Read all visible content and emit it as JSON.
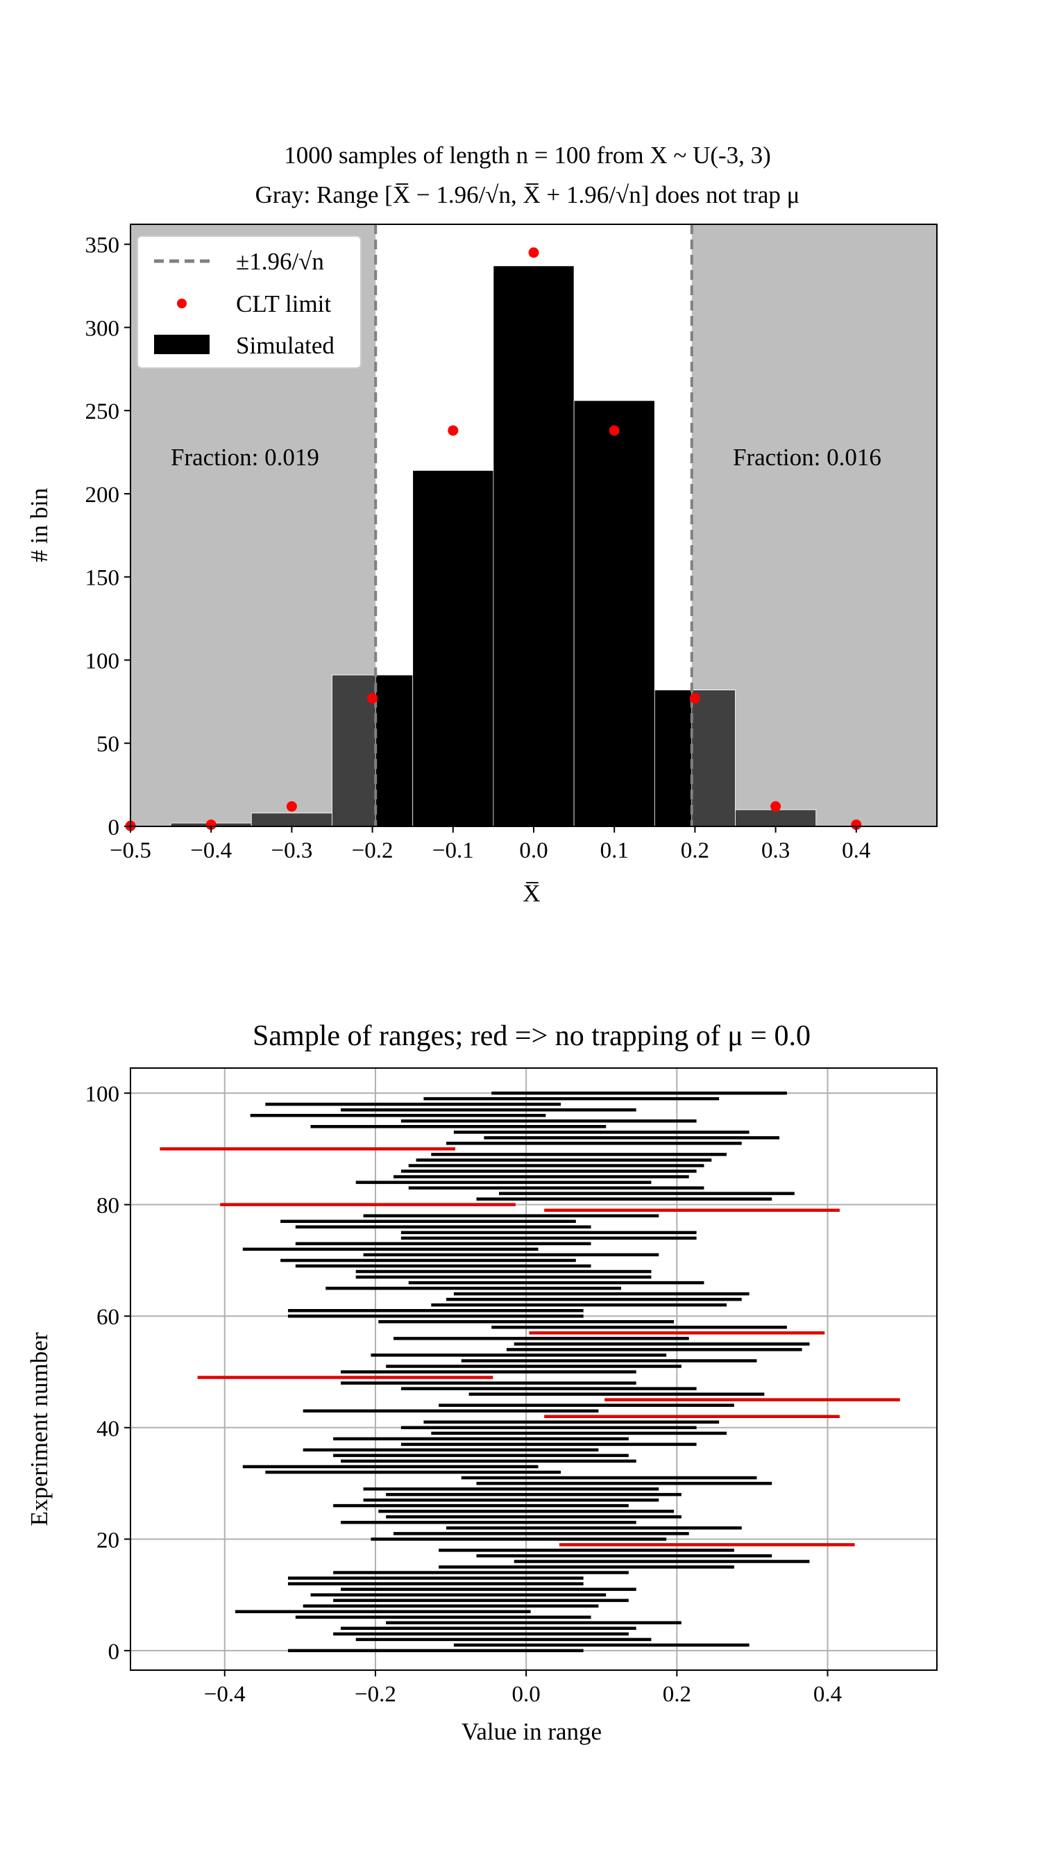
{
  "chart_data": [
    {
      "type": "bar",
      "title": "1000 samples of length n = 100 from X ~ U(-3, 3)",
      "subtitle": "Gray: Range [X̅ − 1.96/√n, X̅ + 1.96/√n] does not trap μ",
      "xlabel": "X̅",
      "ylabel": "# in bin",
      "xlim": [
        -0.5,
        0.5
      ],
      "ylim": [
        0,
        362
      ],
      "xticks": [
        "−0.5",
        "−0.4",
        "−0.3",
        "−0.2",
        "−0.1",
        "0.0",
        "0.1",
        "0.2",
        "0.3",
        "0.4"
      ],
      "xtick_values": [
        -0.5,
        -0.4,
        -0.3,
        -0.2,
        -0.1,
        0.0,
        0.1,
        0.2,
        0.3,
        0.4
      ],
      "yticks": [
        "0",
        "50",
        "100",
        "150",
        "200",
        "250",
        "300",
        "350"
      ],
      "ytick_values": [
        0,
        50,
        100,
        150,
        200,
        250,
        300,
        350
      ],
      "grid": false,
      "legend_position": "top-left",
      "legend": [
        "±1.96/√n",
        "CLT limit",
        "Simulated"
      ],
      "threshold": 0.196,
      "gray_color": "#bebebe",
      "colors": {
        "bar": "#000000",
        "bar_in_gray": "#404040",
        "clt": "#ff0000",
        "vline": "#808080"
      },
      "annotations": [
        "Fraction: 0.019",
        "Fraction: 0.016"
      ],
      "bins": [
        {
          "x": -0.4,
          "count": 2
        },
        {
          "x": -0.3,
          "count": 8
        },
        {
          "x": -0.2,
          "count": 91
        },
        {
          "x": -0.1,
          "count": 214
        },
        {
          "x": 0.0,
          "count": 337
        },
        {
          "x": 0.1,
          "count": 256
        },
        {
          "x": 0.2,
          "count": 82
        },
        {
          "x": 0.3,
          "count": 10
        }
      ],
      "bin_width": 0.1,
      "clt_limit": [
        {
          "x": -0.5,
          "y": 0.3
        },
        {
          "x": -0.4,
          "y": 1
        },
        {
          "x": -0.3,
          "y": 12
        },
        {
          "x": -0.2,
          "y": 77
        },
        {
          "x": -0.1,
          "y": 238
        },
        {
          "x": 0.0,
          "y": 345
        },
        {
          "x": 0.1,
          "y": 238
        },
        {
          "x": 0.2,
          "y": 77
        },
        {
          "x": 0.3,
          "y": 12
        },
        {
          "x": 0.4,
          "y": 1
        }
      ]
    },
    {
      "type": "range",
      "title": "Sample of ranges; red => no trapping of μ = 0.0",
      "xlabel": "Value in range",
      "ylabel": "Experiment number",
      "xlim": [
        -0.525,
        0.545
      ],
      "ylim": [
        -3.5,
        104.5
      ],
      "xticks": [
        "−0.4",
        "−0.2",
        "0.0",
        "0.2",
        "0.4"
      ],
      "xtick_values": [
        -0.4,
        -0.2,
        0.0,
        0.2,
        0.4
      ],
      "yticks": [
        "0",
        "20",
        "40",
        "60",
        "80",
        "100"
      ],
      "ytick_values": [
        0,
        20,
        40,
        60,
        80,
        100
      ],
      "grid": true,
      "mu": 0.0,
      "half_width": 0.196,
      "colors": {
        "trap": "#000000",
        "miss": "#e00000",
        "grid": "#b0b0b0"
      },
      "ranges": [
        {
          "n": 0,
          "center": -0.12
        },
        {
          "n": 1,
          "center": 0.1
        },
        {
          "n": 2,
          "center": -0.03
        },
        {
          "n": 3,
          "center": -0.06
        },
        {
          "n": 4,
          "center": -0.05
        },
        {
          "n": 5,
          "center": 0.01
        },
        {
          "n": 6,
          "center": -0.11
        },
        {
          "n": 7,
          "center": -0.19
        },
        {
          "n": 8,
          "center": -0.1
        },
        {
          "n": 9,
          "center": -0.06
        },
        {
          "n": 10,
          "center": -0.09
        },
        {
          "n": 11,
          "center": -0.05
        },
        {
          "n": 12,
          "center": -0.12
        },
        {
          "n": 13,
          "center": -0.12
        },
        {
          "n": 14,
          "center": -0.06
        },
        {
          "n": 15,
          "center": 0.08
        },
        {
          "n": 16,
          "center": 0.18
        },
        {
          "n": 17,
          "center": 0.13
        },
        {
          "n": 18,
          "center": 0.08
        },
        {
          "n": 19,
          "center": 0.24
        },
        {
          "n": 20,
          "center": -0.01
        },
        {
          "n": 21,
          "center": 0.02
        },
        {
          "n": 22,
          "center": 0.09
        },
        {
          "n": 23,
          "center": -0.05
        },
        {
          "n": 24,
          "center": 0.01
        },
        {
          "n": 25,
          "center": 0.0
        },
        {
          "n": 26,
          "center": -0.06
        },
        {
          "n": 27,
          "center": -0.02
        },
        {
          "n": 28,
          "center": 0.01
        },
        {
          "n": 29,
          "center": -0.02
        },
        {
          "n": 30,
          "center": 0.13
        },
        {
          "n": 31,
          "center": 0.11
        },
        {
          "n": 32,
          "center": -0.15
        },
        {
          "n": 33,
          "center": -0.18
        },
        {
          "n": 34,
          "center": -0.05
        },
        {
          "n": 35,
          "center": -0.06
        },
        {
          "n": 36,
          "center": -0.1
        },
        {
          "n": 37,
          "center": 0.03
        },
        {
          "n": 38,
          "center": -0.06
        },
        {
          "n": 39,
          "center": 0.07
        },
        {
          "n": 40,
          "center": 0.03
        },
        {
          "n": 41,
          "center": 0.06
        },
        {
          "n": 42,
          "center": 0.22
        },
        {
          "n": 43,
          "center": -0.1
        },
        {
          "n": 44,
          "center": 0.08
        },
        {
          "n": 45,
          "center": 0.3
        },
        {
          "n": 46,
          "center": 0.12
        },
        {
          "n": 47,
          "center": 0.03
        },
        {
          "n": 48,
          "center": -0.05
        },
        {
          "n": 49,
          "center": -0.24
        },
        {
          "n": 50,
          "center": -0.05
        },
        {
          "n": 51,
          "center": 0.01
        },
        {
          "n": 52,
          "center": 0.11
        },
        {
          "n": 53,
          "center": -0.01
        },
        {
          "n": 54,
          "center": 0.17
        },
        {
          "n": 55,
          "center": 0.18
        },
        {
          "n": 56,
          "center": 0.02
        },
        {
          "n": 57,
          "center": 0.2
        },
        {
          "n": 58,
          "center": 0.15
        },
        {
          "n": 59,
          "center": 0.0
        },
        {
          "n": 60,
          "center": -0.12
        },
        {
          "n": 61,
          "center": -0.12
        },
        {
          "n": 62,
          "center": 0.07
        },
        {
          "n": 63,
          "center": 0.09
        },
        {
          "n": 64,
          "center": 0.1
        },
        {
          "n": 65,
          "center": -0.07
        },
        {
          "n": 66,
          "center": 0.04
        },
        {
          "n": 67,
          "center": -0.03
        },
        {
          "n": 68,
          "center": -0.03
        },
        {
          "n": 69,
          "center": -0.11
        },
        {
          "n": 70,
          "center": -0.13
        },
        {
          "n": 71,
          "center": -0.02
        },
        {
          "n": 72,
          "center": -0.18
        },
        {
          "n": 73,
          "center": -0.11
        },
        {
          "n": 74,
          "center": 0.03
        },
        {
          "n": 75,
          "center": 0.03
        },
        {
          "n": 76,
          "center": -0.11
        },
        {
          "n": 77,
          "center": -0.13
        },
        {
          "n": 78,
          "center": -0.02
        },
        {
          "n": 79,
          "center": 0.22
        },
        {
          "n": 80,
          "center": -0.21
        },
        {
          "n": 81,
          "center": 0.13
        },
        {
          "n": 82,
          "center": 0.16
        },
        {
          "n": 83,
          "center": 0.04
        },
        {
          "n": 84,
          "center": -0.03
        },
        {
          "n": 85,
          "center": 0.02
        },
        {
          "n": 86,
          "center": 0.03
        },
        {
          "n": 87,
          "center": 0.04
        },
        {
          "n": 88,
          "center": 0.05
        },
        {
          "n": 89,
          "center": 0.07
        },
        {
          "n": 90,
          "center": -0.29
        },
        {
          "n": 91,
          "center": 0.09
        },
        {
          "n": 92,
          "center": 0.14
        },
        {
          "n": 93,
          "center": 0.1
        },
        {
          "n": 94,
          "center": -0.09
        },
        {
          "n": 95,
          "center": 0.03
        },
        {
          "n": 96,
          "center": -0.17
        },
        {
          "n": 97,
          "center": -0.05
        },
        {
          "n": 98,
          "center": -0.15
        },
        {
          "n": 99,
          "center": 0.06
        },
        {
          "n": 100,
          "center": 0.15
        }
      ]
    }
  ]
}
